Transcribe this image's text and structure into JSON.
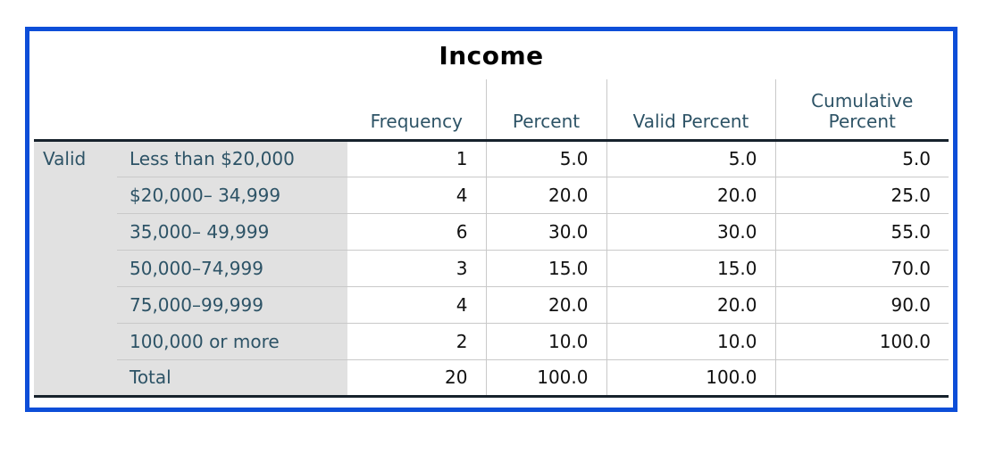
{
  "title": "Income",
  "table": {
    "stub_label": "Valid",
    "columns": [
      "Frequency",
      "Percent",
      "Valid Percent",
      "Cumulative Percent"
    ],
    "rows": [
      {
        "label": "Less than $20,000",
        "frequency": "1",
        "percent": "5.0",
        "valid_percent": "5.0",
        "cumulative_percent": "5.0"
      },
      {
        "label": "$20,000– 34,999",
        "frequency": "4",
        "percent": "20.0",
        "valid_percent": "20.0",
        "cumulative_percent": "25.0"
      },
      {
        "label": "35,000– 49,999",
        "frequency": "6",
        "percent": "30.0",
        "valid_percent": "30.0",
        "cumulative_percent": "55.0"
      },
      {
        "label": "50,000–74,999",
        "frequency": "3",
        "percent": "15.0",
        "valid_percent": "15.0",
        "cumulative_percent": "70.0"
      },
      {
        "label": "75,000–99,999",
        "frequency": "4",
        "percent": "20.0",
        "valid_percent": "20.0",
        "cumulative_percent": "90.0"
      },
      {
        "label": "100,000 or more",
        "frequency": "2",
        "percent": "10.0",
        "valid_percent": "10.0",
        "cumulative_percent": "100.0"
      },
      {
        "label": "Total",
        "frequency": "20",
        "percent": "100.0",
        "valid_percent": "100.0",
        "cumulative_percent": ""
      }
    ]
  },
  "colors": {
    "selection_frame_blue": "#0d4ed8",
    "header_label_text": "#2d5366",
    "stub_background": "#e1e1e1",
    "thick_rule": "#17222c",
    "grid_line": "#c9c9c9",
    "value_text": "#111111"
  },
  "chart_data": {
    "type": "table",
    "title": "Income",
    "row_group": "Valid",
    "columns": [
      "",
      "Frequency",
      "Percent",
      "Valid Percent",
      "Cumulative Percent"
    ],
    "rows": [
      [
        "Less than $20,000",
        1,
        5.0,
        5.0,
        5.0
      ],
      [
        "$20,000– 34,999",
        4,
        20.0,
        20.0,
        25.0
      ],
      [
        "35,000– 49,999",
        6,
        30.0,
        30.0,
        55.0
      ],
      [
        "50,000–74,999",
        3,
        15.0,
        15.0,
        70.0
      ],
      [
        "75,000–99,999",
        4,
        20.0,
        20.0,
        90.0
      ],
      [
        "100,000 or more",
        2,
        10.0,
        10.0,
        100.0
      ],
      [
        "Total",
        20,
        100.0,
        100.0,
        null
      ]
    ]
  }
}
